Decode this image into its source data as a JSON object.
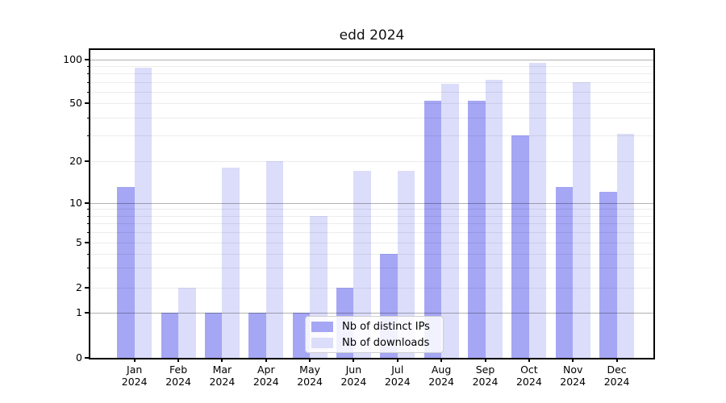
{
  "title": "edd 2024",
  "legend": {
    "items": [
      {
        "label": "Nb of distinct IPs",
        "color": "#a5a6f4"
      },
      {
        "label": "Nb of downloads",
        "color": "#dcddfa"
      }
    ]
  },
  "chart_data": {
    "type": "bar",
    "title": "edd 2024",
    "categories": [
      "Jan 2024",
      "Feb 2024",
      "Mar 2024",
      "Apr 2024",
      "May 2024",
      "Jun 2024",
      "Jul 2024",
      "Aug 2024",
      "Sep 2024",
      "Oct 2024",
      "Nov 2024",
      "Dec 2024"
    ],
    "months": [
      "Jan",
      "Feb",
      "Mar",
      "Apr",
      "May",
      "Jun",
      "Jul",
      "Aug",
      "Sep",
      "Oct",
      "Nov",
      "Dec"
    ],
    "year": "2024",
    "series": [
      {
        "name": "Nb of distinct IPs",
        "color": "#a5a6f4",
        "values": [
          13,
          1,
          1,
          1,
          1,
          2,
          4,
          52,
          52,
          30,
          13,
          12
        ]
      },
      {
        "name": "Nb of downloads",
        "color": "#dcddfa",
        "values": [
          88,
          2,
          18,
          20,
          8,
          17,
          17,
          68,
          73,
          95,
          70,
          31
        ]
      }
    ],
    "xlabel": "",
    "ylabel": "",
    "y_axis": {
      "scale": "log-like (0 baseline, log decades 1-100)",
      "tick_values": [
        0,
        1,
        2,
        5,
        10,
        20,
        50,
        100
      ],
      "major_grid_values": [
        1,
        10,
        100
      ],
      "minor_grid_values": [
        2,
        3,
        4,
        5,
        6,
        7,
        8,
        9,
        20,
        30,
        40,
        50,
        60,
        70,
        80,
        90
      ]
    },
    "ylim": [
      0,
      100
    ],
    "grid": true,
    "legend_position": "lower center"
  }
}
